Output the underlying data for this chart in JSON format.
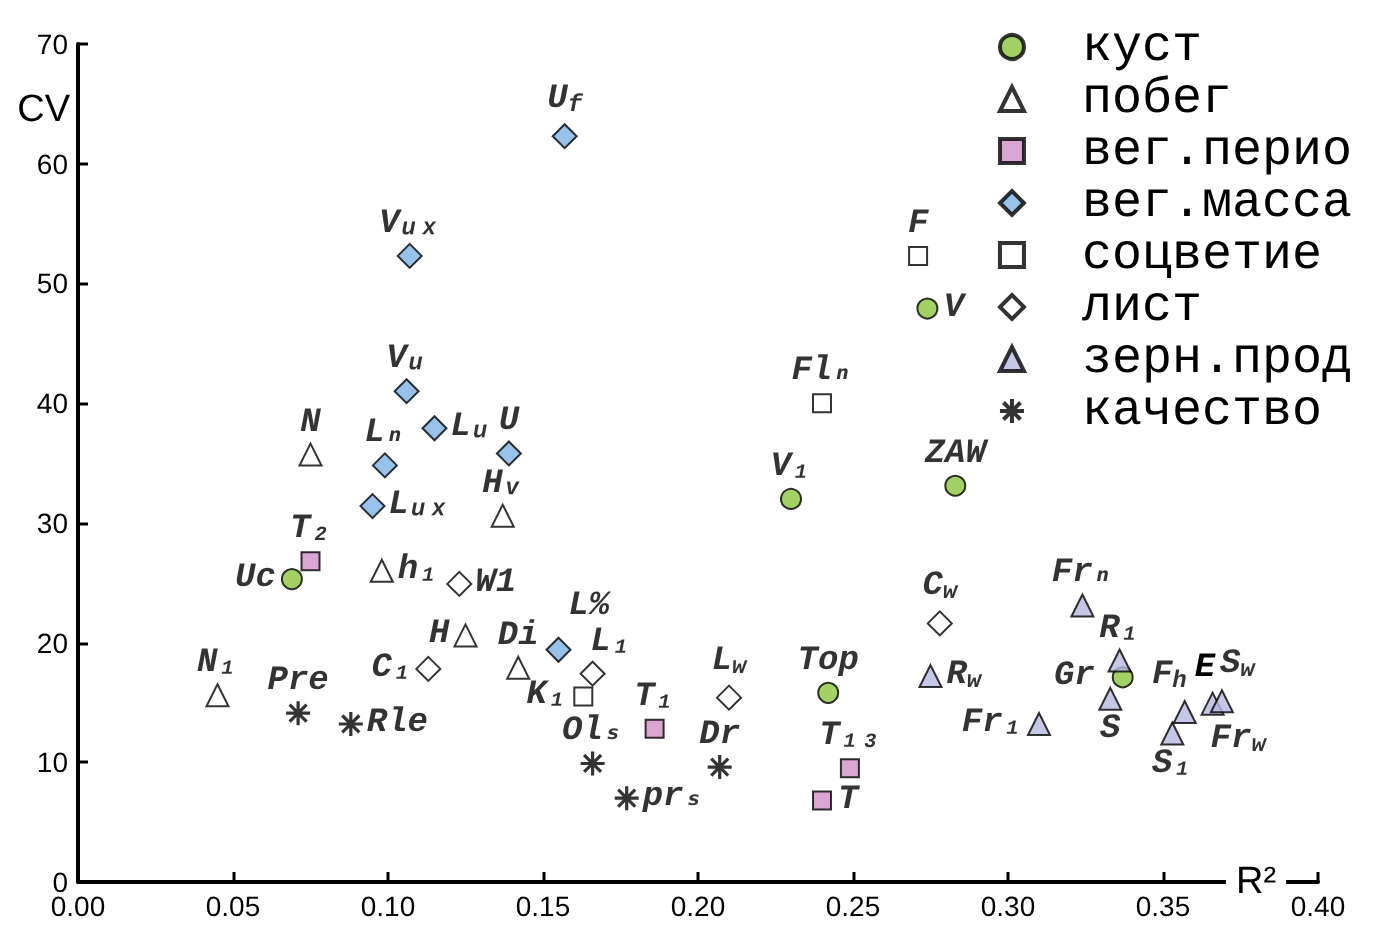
{
  "chart_data": {
    "type": "scatter",
    "xlabel": "R²",
    "ylabel": "CV",
    "xlim": [
      0,
      0.4
    ],
    "xticks": [
      {
        "value": 0,
        "label": "0.00"
      },
      {
        "value": 0.05,
        "label": "0.05"
      },
      {
        "value": 0.1,
        "label": "0.10"
      },
      {
        "value": 0.15,
        "label": "0.15"
      },
      {
        "value": 0.2,
        "label": "0.20"
      },
      {
        "value": 0.25,
        "label": "0.25"
      },
      {
        "value": 0.3,
        "label": "0.30"
      },
      {
        "value": 0.35,
        "label": "0.35"
      },
      {
        "value": 0.4,
        "label": "0.40"
      }
    ],
    "ylim": [
      0,
      70
    ],
    "yticks": [
      0,
      10,
      20,
      30,
      40,
      50,
      60,
      70
    ],
    "grid": false,
    "legend": "top right",
    "annotations": [
      {
        "text": "E",
        "x": 0.357,
        "y": 14.2
      }
    ],
    "series": [
      {
        "name": "куст",
        "color": "#8dc63f",
        "marker": "circle",
        "x": [
          0.069,
          0.23,
          0.274,
          0.283,
          0.242,
          0.337
        ],
        "values": [
          25.3,
          32.0,
          47.9,
          33.1,
          15.8,
          17.1
        ],
        "value_labels": [
          "Uc",
          "V₁",
          "V",
          "ZAW",
          "Top",
          "Gr"
        ]
      },
      {
        "name": "побег",
        "color": "#ffffff",
        "marker": "triangle",
        "x": [
          0.075,
          0.098,
          0.125,
          0.045,
          0.137,
          0.142
        ],
        "values": [
          35.7,
          26.0,
          20.6,
          15.6,
          30.6,
          17.9
        ],
        "value_labels": [
          "N",
          "h₁",
          "H",
          "N₁",
          "Hᵥ",
          "Di"
        ]
      },
      {
        "name": "вег.перио",
        "color": "#cf8fc8",
        "marker": "square",
        "x": [
          0.075,
          0.186,
          0.249,
          0.24
        ],
        "values": [
          26.8,
          12.8,
          9.5,
          6.8
        ],
        "value_labels": [
          "T₂",
          "T₁",
          "T₁₃",
          "T"
        ]
      },
      {
        "name": "вег.масса",
        "color": "#80b3e6",
        "marker": "diamond",
        "x": [
          0.107,
          0.106,
          0.115,
          0.099,
          0.095,
          0.157,
          0.139,
          0.155
        ],
        "values": [
          52.3,
          41.0,
          37.9,
          34.8,
          31.4,
          62.3,
          35.8,
          19.4
        ],
        "value_labels": [
          "Vᵤₓ",
          "Vᵤ",
          "Lᵤ",
          "Lₙ",
          "Lᵤₓ",
          "U$_{f}$",
          "U",
          "L%"
        ]
      },
      {
        "name": "соцветие",
        "color": "#ffffff",
        "marker": "square",
        "x": [
          0.271,
          0.24,
          0.163
        ],
        "values": [
          52.3,
          40.0,
          15.5
        ],
        "value_labels": [
          "F",
          "Flₙ",
          "K₁"
        ]
      },
      {
        "name": "лист",
        "color": "#ffffff",
        "marker": "diamond",
        "x": [
          0.123,
          0.113,
          0.166,
          0.21,
          0.278
        ],
        "values": [
          24.9,
          17.8,
          17.4,
          15.4,
          21.6
        ],
        "value_labels": [
          "W1",
          "C₁",
          "L₁",
          "L$_{w}$",
          "C$_{w}$"
        ]
      },
      {
        "name": "зерн.прод",
        "color": "#b8b8e0",
        "marker": "triangle",
        "x": [
          0.275,
          0.31,
          0.324,
          0.336,
          0.333,
          0.357,
          0.353,
          0.366,
          0.369
        ],
        "values": [
          17.2,
          13.2,
          23.1,
          18.5,
          15.3,
          14.2,
          12.4,
          14.9,
          15.1
        ],
        "value_labels": [
          "R$_{w}$",
          "Fr₁",
          "Frₙ",
          "R₁",
          "S",
          "F$_{h}$",
          "S₁",
          "Fr$_{w}$",
          "S$_{w}$"
        ]
      },
      {
        "name": "качество",
        "color": "#000000",
        "marker": "cross",
        "x": [
          0.071,
          0.088,
          0.166,
          0.177,
          0.207
        ],
        "values": [
          14.1,
          13.2,
          9.9,
          7.0,
          9.6
        ],
        "value_labels": [
          "Pre",
          "Rle",
          "Olₛ",
          "prₛ",
          "Dr"
        ]
      }
    ]
  }
}
